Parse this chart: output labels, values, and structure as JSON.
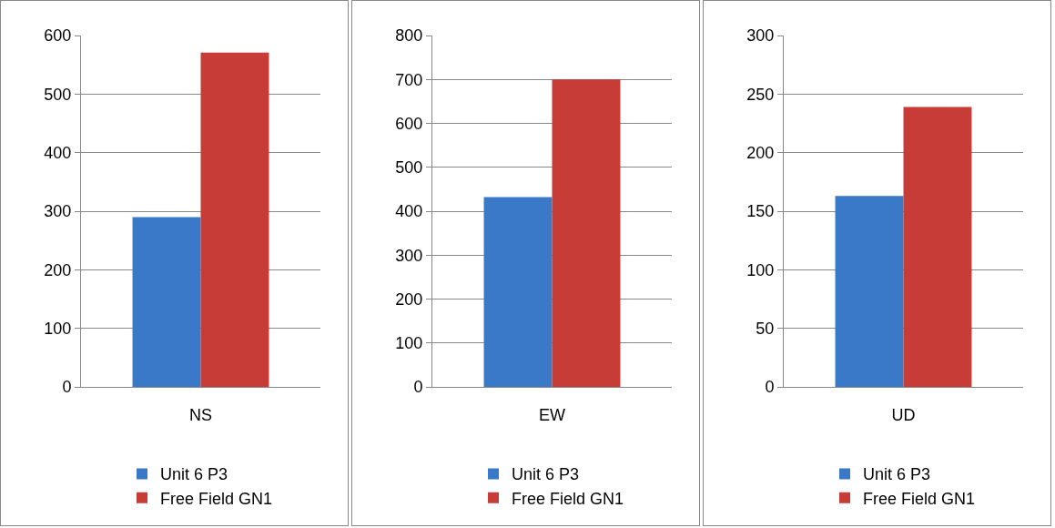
{
  "chart_data": [
    {
      "type": "bar",
      "categories": [
        "NS"
      ],
      "series": [
        {
          "name": "Unit 6 P3",
          "color": "#3a78c8",
          "values": [
            290
          ]
        },
        {
          "name": "Free Field GN1",
          "color": "#c83c38",
          "values": [
            571
          ]
        }
      ],
      "ylim": [
        0,
        600
      ],
      "yticks": [
        0,
        100,
        200,
        300,
        400,
        500,
        600
      ],
      "grid": "y",
      "legend": "bottom"
    },
    {
      "type": "bar",
      "categories": [
        "EW"
      ],
      "series": [
        {
          "name": "Unit 6 P3",
          "color": "#3a78c8",
          "values": [
            432
          ]
        },
        {
          "name": "Free Field GN1",
          "color": "#c83c38",
          "values": [
            700
          ]
        }
      ],
      "ylim": [
        0,
        800
      ],
      "yticks": [
        0,
        100,
        200,
        300,
        400,
        500,
        600,
        700,
        800
      ],
      "grid": "y",
      "legend": "bottom"
    },
    {
      "type": "bar",
      "categories": [
        "UD"
      ],
      "series": [
        {
          "name": "Unit 6 P3",
          "color": "#3a78c8",
          "values": [
            163
          ]
        },
        {
          "name": "Free Field GN1",
          "color": "#c83c38",
          "values": [
            239
          ]
        }
      ],
      "ylim": [
        0,
        300
      ],
      "yticks": [
        0,
        50,
        100,
        150,
        200,
        250,
        300
      ],
      "grid": "y",
      "legend": "bottom"
    }
  ]
}
